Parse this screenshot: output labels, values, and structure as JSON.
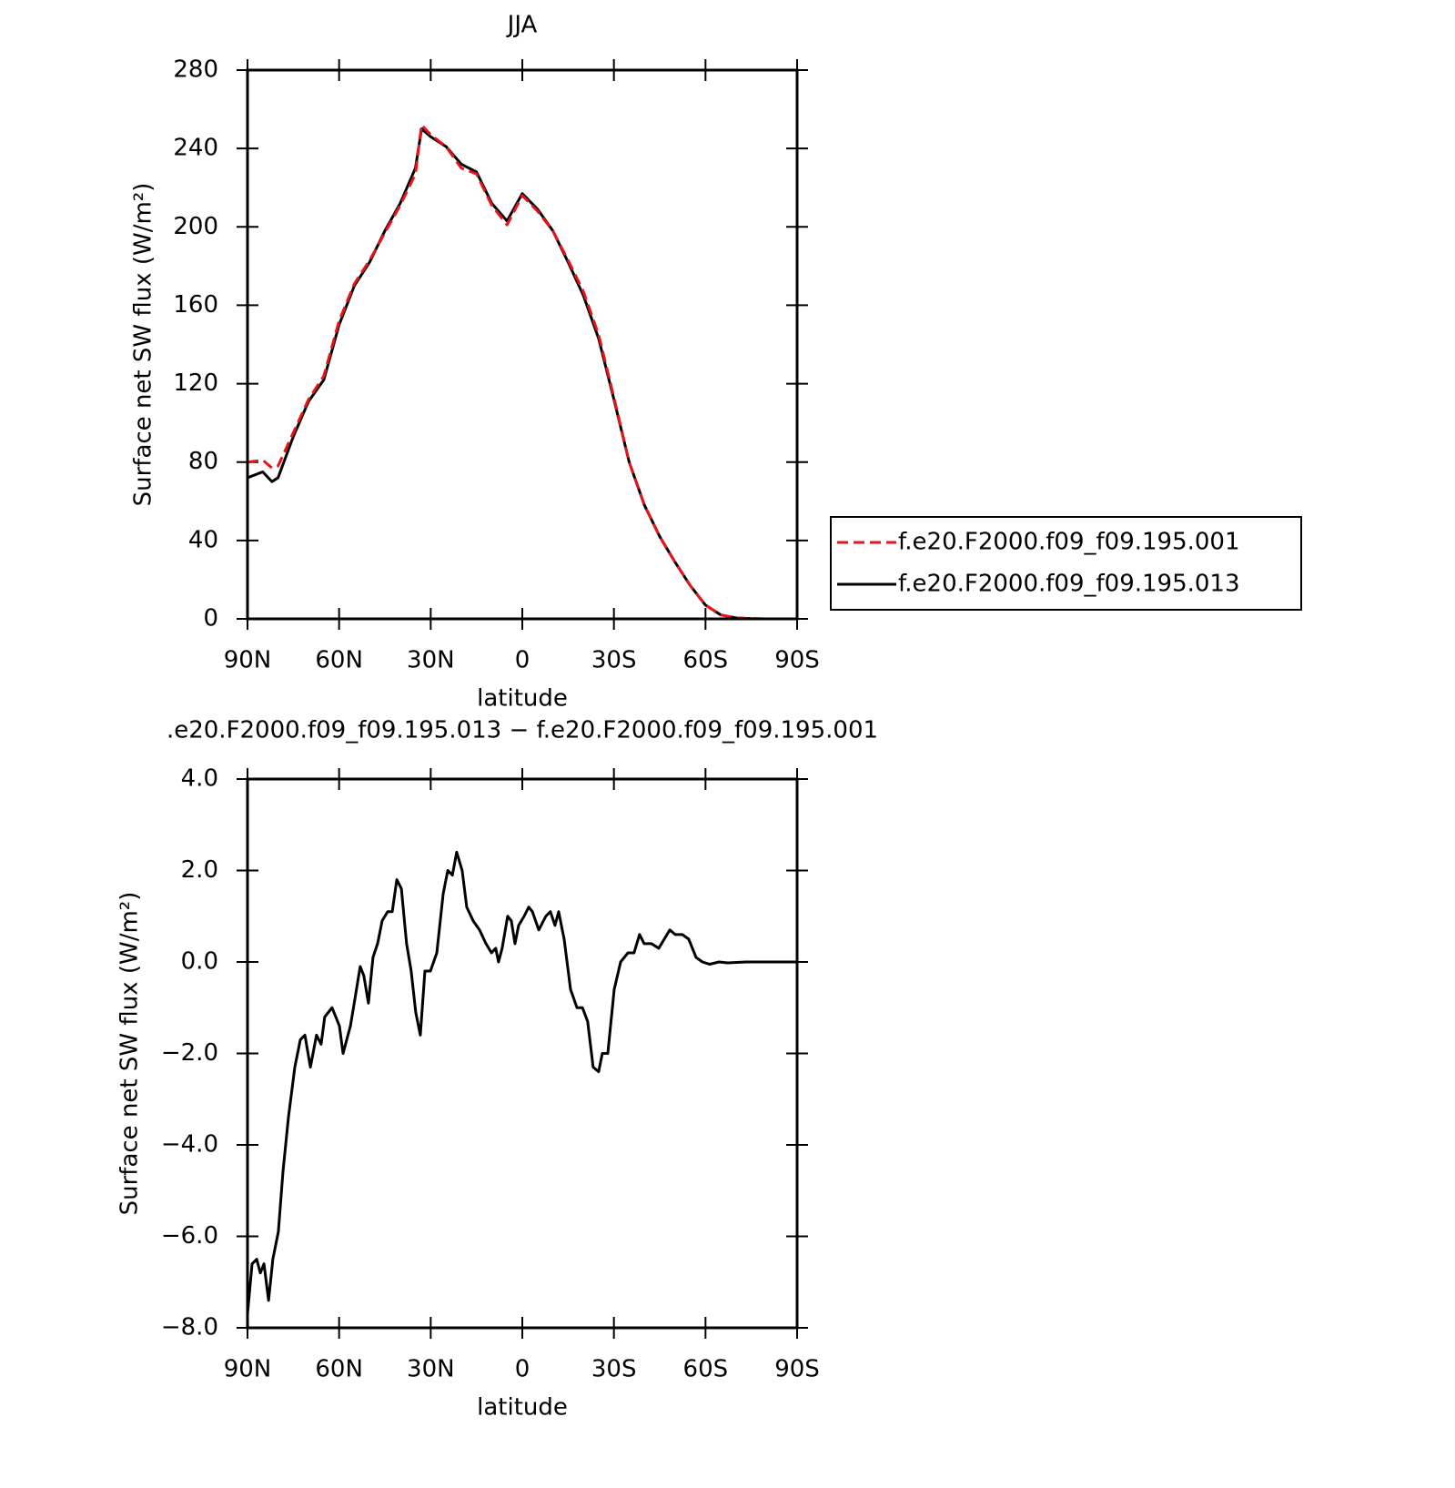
{
  "chart_data": [
    {
      "type": "line",
      "title": "JJA",
      "x_label": "latitude",
      "y_label": "Surface net SW flux (W/m²)",
      "x": [
        90,
        85,
        82,
        80,
        75,
        70,
        65,
        60,
        55,
        50,
        45,
        40,
        35,
        33,
        30,
        25,
        20,
        15,
        10,
        5,
        0,
        -5,
        -10,
        -15,
        -20,
        -25,
        -30,
        -35,
        -40,
        -45,
        -50,
        -55,
        -60,
        -65,
        -70,
        -75,
        -80,
        -85,
        -90
      ],
      "series": [
        {
          "name": "f.e20.F2000.f09_f09.195.001",
          "color": "#e8141c",
          "dashed": true,
          "values": [
            80,
            81,
            77,
            78,
            95,
            112,
            124,
            152,
            171,
            183,
            197,
            211,
            227,
            252,
            247,
            241,
            230,
            227,
            211,
            201,
            216,
            208,
            198,
            183,
            167,
            145,
            113,
            80,
            58,
            42,
            29,
            17,
            7,
            2,
            0.5,
            0.1,
            0,
            0,
            0
          ]
        },
        {
          "name": "f.e20.F2000.f09_f09.195.013",
          "color": "#000000",
          "dashed": false,
          "values": [
            72,
            75,
            70,
            72,
            93,
            111,
            122,
            150,
            170,
            182,
            198,
            212,
            230,
            250,
            246,
            241,
            232,
            228,
            212,
            203,
            217,
            209,
            198,
            182,
            165,
            143,
            112,
            80,
            58,
            42,
            29,
            17,
            7,
            2,
            0.5,
            0.1,
            0,
            0,
            0
          ]
        }
      ],
      "xlim": [
        90,
        -90
      ],
      "xticks": [
        {
          "value": 90,
          "label": "90N"
        },
        {
          "value": 60,
          "label": "60N"
        },
        {
          "value": 30,
          "label": "30N"
        },
        0,
        {
          "value": -30,
          "label": "30S"
        },
        {
          "value": -60,
          "label": "60S"
        },
        {
          "value": -90,
          "label": "90S"
        }
      ],
      "ylim": [
        0,
        280
      ],
      "yticks": [
        0,
        40,
        80,
        120,
        160,
        200,
        240,
        280
      ],
      "legend": "right"
    },
    {
      "type": "line",
      "title": ".e20.F2000.f09_f09.195.013 − f.e20.F2000.f09_f09.195.001",
      "x_label": "latitude",
      "y_label": "Surface net SW flux (W/m²)",
      "x": [
        90,
        88.5,
        87,
        85.8,
        84.6,
        83.1,
        81.7,
        79.9,
        78.4,
        76.6,
        74.5,
        72.7,
        71.2,
        69.4,
        67.4,
        65.9,
        64.7,
        62.3,
        59.9,
        58.7,
        56.3,
        54.8,
        53.1,
        51.9,
        50.4,
        48.9,
        47.4,
        45.9,
        44.1,
        42.6,
        41.1,
        39.6,
        37.9,
        36.4,
        34.9,
        33.4,
        31.9,
        30.1,
        28,
        25.9,
        24.4,
        22.9,
        21.5,
        19.7,
        18.2,
        16.1,
        14,
        11.9,
        10.1,
        8.7,
        7.8,
        6.6,
        4.8,
        3.6,
        2.4,
        1.2,
        -0.6,
        -2.1,
        -3.3,
        -5.4,
        -7.7,
        -9.2,
        -10.7,
        -11.9,
        -13.7,
        -15.8,
        -17.9,
        -19.7,
        -21.4,
        -23.2,
        -25,
        -26.2,
        -28,
        -30.1,
        -32.2,
        -34.6,
        -36.6,
        -38.4,
        -39.9,
        -42.3,
        -44.7,
        -46.5,
        -48.3,
        -50.1,
        -52.4,
        -54.5,
        -56.9,
        -59,
        -61.4,
        -64.4,
        -67.3,
        -73.3,
        -90
      ],
      "series": [
        {
          "name": null,
          "color": "#000000",
          "dashed": false,
          "values": [
            -7.7,
            -6.6,
            -6.5,
            -6.8,
            -6.6,
            -7.4,
            -6.5,
            -5.9,
            -4.6,
            -3.4,
            -2.3,
            -1.7,
            -1.6,
            -2.3,
            -1.6,
            -1.8,
            -1.2,
            -1.0,
            -1.4,
            -2.0,
            -1.4,
            -0.8,
            -0.1,
            -0.3,
            -0.9,
            0.1,
            0.4,
            0.9,
            1.1,
            1.1,
            1.8,
            1.6,
            0.4,
            -0.2,
            -1.1,
            -1.6,
            -0.2,
            -0.2,
            0.2,
            1.5,
            2.0,
            1.9,
            2.4,
            2.0,
            1.2,
            0.9,
            0.7,
            0.4,
            0.2,
            0.3,
            0.0,
            0.3,
            1.0,
            0.9,
            0.4,
            0.8,
            1.0,
            1.2,
            1.1,
            0.7,
            1.0,
            1.1,
            0.8,
            1.1,
            0.5,
            -0.6,
            -1.0,
            -1.0,
            -1.3,
            -2.3,
            -2.4,
            -2.0,
            -2.0,
            -0.6,
            0.0,
            0.2,
            0.2,
            0.6,
            0.4,
            0.4,
            0.3,
            0.5,
            0.7,
            0.6,
            0.6,
            0.5,
            0.1,
            0.0,
            -0.05,
            0.0,
            -0.02,
            0.0,
            0.0
          ]
        }
      ],
      "xlim": [
        90,
        -90
      ],
      "xticks": [
        {
          "value": 90,
          "label": "90N"
        },
        {
          "value": 60,
          "label": "60N"
        },
        {
          "value": 30,
          "label": "30N"
        },
        0,
        {
          "value": -30,
          "label": "30S"
        },
        {
          "value": -60,
          "label": "60S"
        },
        {
          "value": -90,
          "label": "90S"
        }
      ],
      "ylim": [
        -8,
        4
      ],
      "yticks": [
        {
          "value": -8,
          "label": "−8.0"
        },
        {
          "value": -6,
          "label": "−6.0"
        },
        {
          "value": -4,
          "label": "−4.0"
        },
        {
          "value": -2,
          "label": "−2.0"
        },
        {
          "value": 0,
          "label": "0.0"
        },
        {
          "value": 2,
          "label": "2.0"
        },
        {
          "value": 4,
          "label": "4.0"
        }
      ]
    }
  ]
}
